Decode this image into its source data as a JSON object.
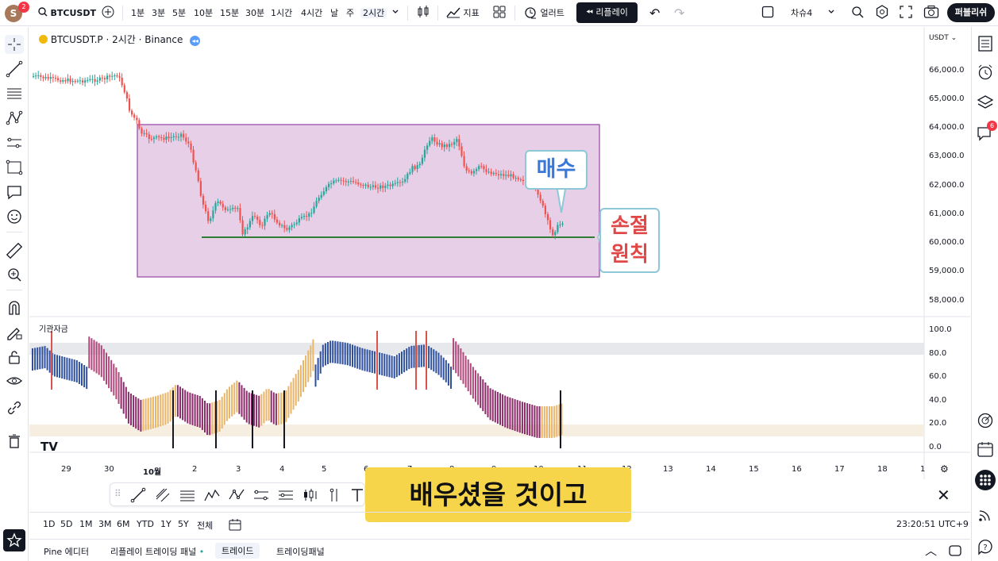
{
  "topbar": {
    "avatar_letter": "S",
    "avatar_badge": "2",
    "symbol": "BTCUSDT",
    "intervals": [
      "1분",
      "3분",
      "5분",
      "10분",
      "15분",
      "30분",
      "1시간",
      "4시간",
      "날",
      "주",
      "2시간"
    ],
    "active_interval": "2시간",
    "indicators_label": "지표",
    "alert_label": "얼러트",
    "replay_label": "리플레이",
    "layout_label": "차슈4",
    "publish_label": "퍼블리쉬"
  },
  "chart": {
    "legend": "BTCUSDT.P · 2시간 · Binance",
    "currency": "USDT",
    "price_labels": [
      "66,000.0",
      "65,000.0",
      "64,000.0",
      "63,000.0",
      "62,000.0",
      "61,000.0",
      "60,000.0",
      "59,000.0",
      "58,000.0"
    ],
    "indicator_name": "기관자금",
    "indicator_labels": [
      "100.0",
      "80.0",
      "60.0",
      "40.0",
      "20.0",
      "0.0"
    ],
    "time_labels": [
      "29",
      "30",
      "10월",
      "2",
      "3",
      "4",
      "5",
      "6",
      "7",
      "8",
      "9",
      "10",
      "11",
      "12",
      "13",
      "14",
      "15",
      "16",
      "17",
      "18",
      "1"
    ],
    "callout_buy": "매수",
    "callout_stop_line1": "손절",
    "callout_stop_line2": "원칙",
    "colors": {
      "up": "#26a69a",
      "down": "#ef5350",
      "box_fill": "#e7cfe7",
      "box_border": "#9c4fa8",
      "stop_line": "#2e7d32",
      "buy_text": "#3a78d8",
      "stop_text": "#e04848"
    }
  },
  "subtitle": "배우셨을 것이고",
  "range_bar": {
    "ranges": [
      "1D",
      "5D",
      "1M",
      "3M",
      "6M",
      "YTD",
      "1Y",
      "5Y",
      "전체"
    ],
    "clock": "23:20:51 UTC+9"
  },
  "bottom_panel": {
    "tabs": [
      "Pine 에디터",
      "리플레이 트레이딩 패널",
      "트레이드",
      "트레이딩패널"
    ]
  },
  "rightbar": {
    "notif_badge": "6"
  }
}
